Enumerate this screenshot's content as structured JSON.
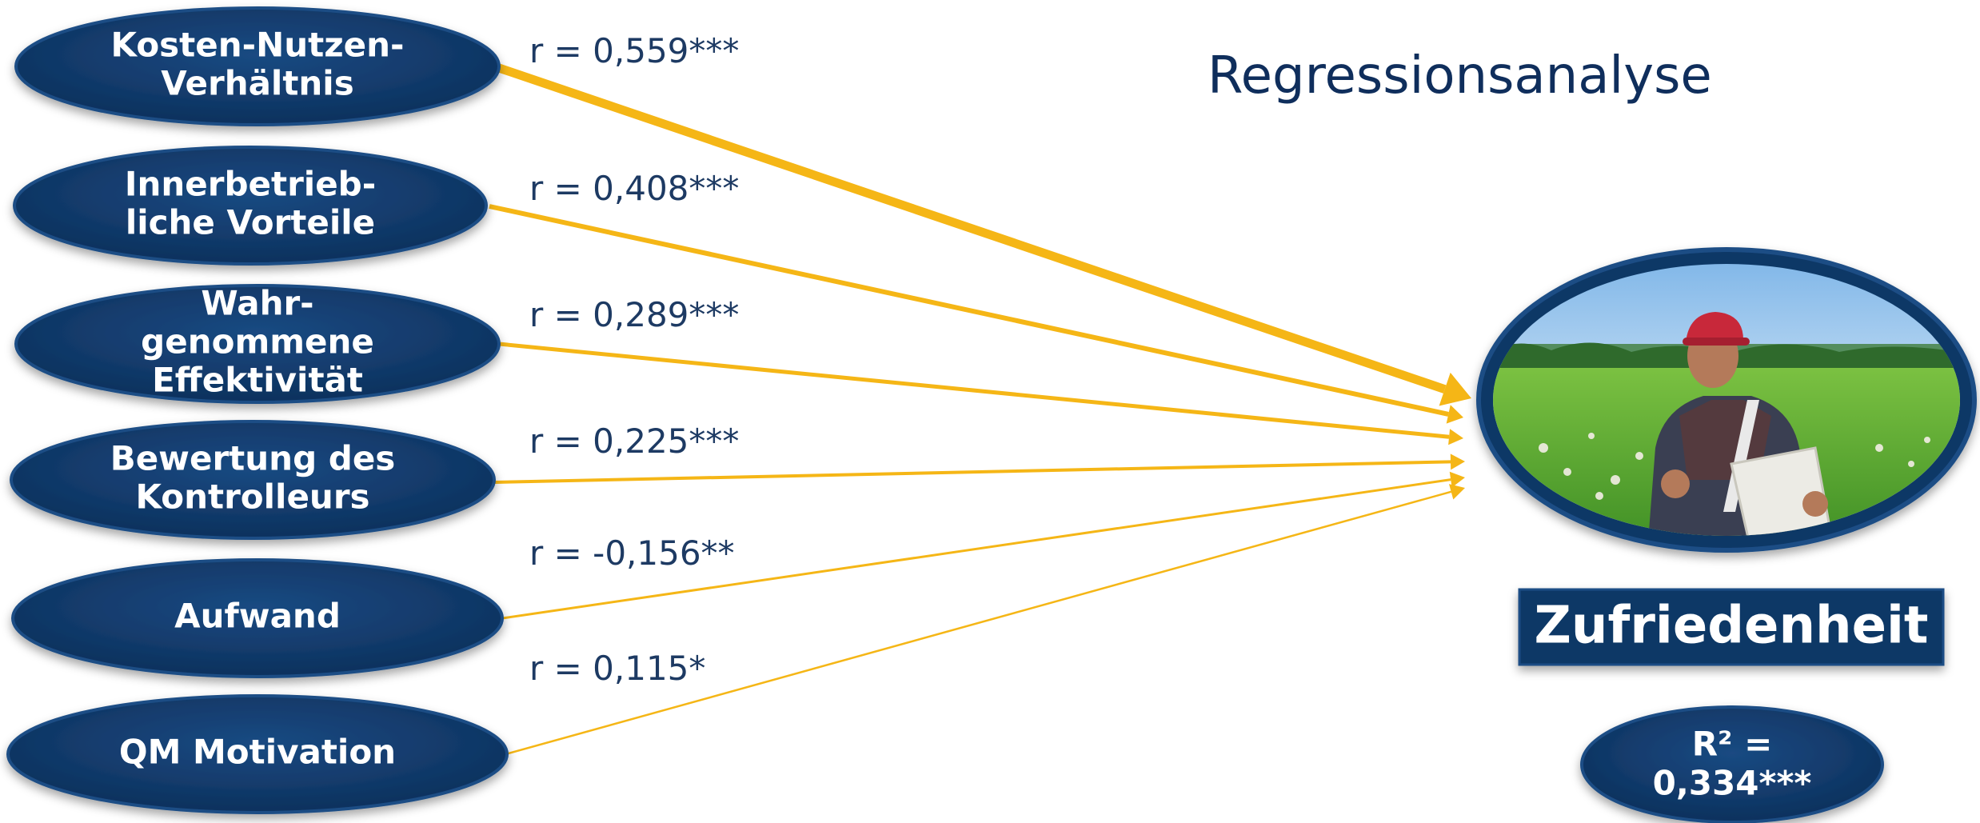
{
  "title": "Regressionsanalyse",
  "colors": {
    "node_fill": "#0f3766",
    "node_edge": "#1c4d85",
    "arrow": "#f5b616",
    "text_dark": "#1d3a63"
  },
  "icons": {
    "outcome_photo": "farmer-in-field-photo"
  },
  "predictors": [
    {
      "lines": [
        "Kosten-Nutzen-",
        "Verhältnis"
      ],
      "r": "r = 0,559***"
    },
    {
      "lines": [
        "Innerbetrieb-",
        "liche Vorteile"
      ],
      "r": "r = 0,408***"
    },
    {
      "lines": [
        "Wahr-",
        "genommene",
        "Effektivität"
      ],
      "r": "r = 0,289***"
    },
    {
      "lines": [
        "Bewertung des",
        "Kontrolleurs"
      ],
      "r": "r = 0,225***"
    },
    {
      "lines": [
        "Aufwand"
      ],
      "r": "r = -0,156**"
    },
    {
      "lines": [
        "QM Motivation"
      ],
      "r": "r = 0,115*"
    }
  ],
  "outcome": {
    "label": "Zufriedenheit"
  },
  "r_squared": {
    "lines": [
      "R² =",
      "0,334***"
    ]
  }
}
